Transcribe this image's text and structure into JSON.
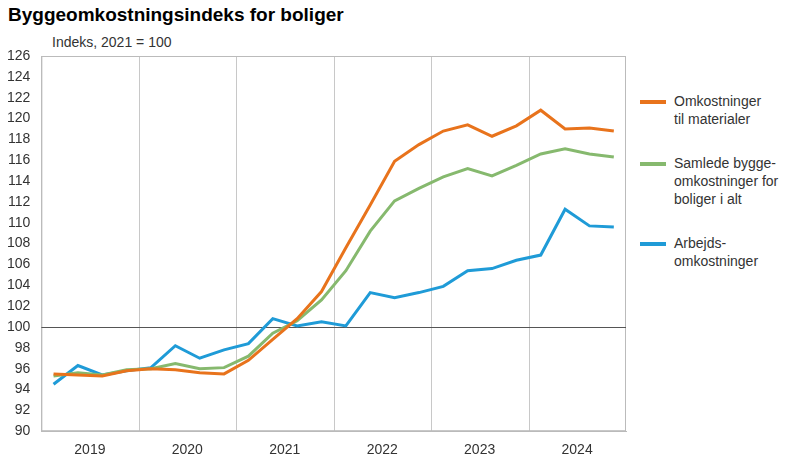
{
  "chart_data": {
    "type": "line",
    "title": "Byggeomkostningsindeks for boliger",
    "subtitle": "Indeks, 2021 = 100",
    "categories": [
      null,
      "2019",
      null,
      null,
      null,
      "2020",
      null,
      null,
      null,
      "2021",
      null,
      null,
      null,
      "2022",
      null,
      null,
      null,
      "2023",
      null,
      null,
      null,
      "2024",
      null,
      null
    ],
    "series": [
      {
        "name": "Omkostninger\ntil materialer",
        "color": "#e8731c",
        "values": [
          95.5,
          95.4,
          95.3,
          95.8,
          96.0,
          95.9,
          95.6,
          95.5,
          96.8,
          98.8,
          100.8,
          103.4,
          107.6,
          111.7,
          115.9,
          117.5,
          118.8,
          119.4,
          118.3,
          119.3,
          120.8,
          119.0,
          119.1,
          118.8
        ]
      },
      {
        "name": "Samlede bygge-\nomkostninger for\nboliger i alt",
        "color": "#86b96e",
        "values": [
          95.3,
          95.6,
          95.4,
          95.9,
          96.0,
          96.5,
          96.0,
          96.1,
          97.2,
          99.4,
          100.6,
          102.6,
          105.4,
          109.2,
          112.1,
          113.3,
          114.4,
          115.2,
          114.5,
          115.5,
          116.6,
          117.1,
          116.6,
          116.3
        ]
      },
      {
        "name": "Arbejds-\nomkostninger",
        "color": "#1f9bd7",
        "values": [
          94.5,
          96.3,
          95.4,
          95.8,
          96.1,
          98.2,
          97.0,
          97.8,
          98.4,
          100.8,
          100.1,
          100.5,
          100.1,
          103.3,
          102.8,
          103.3,
          103.9,
          105.4,
          105.6,
          106.4,
          106.9,
          111.3,
          109.7,
          109.6
        ]
      }
    ],
    "ylim": [
      90,
      126
    ],
    "yticks": [
      90,
      92,
      94,
      96,
      98,
      100,
      102,
      104,
      106,
      108,
      110,
      112,
      114,
      116,
      118,
      120,
      122,
      124,
      126
    ],
    "reference_line": 100,
    "grid": true,
    "legend": "right"
  }
}
